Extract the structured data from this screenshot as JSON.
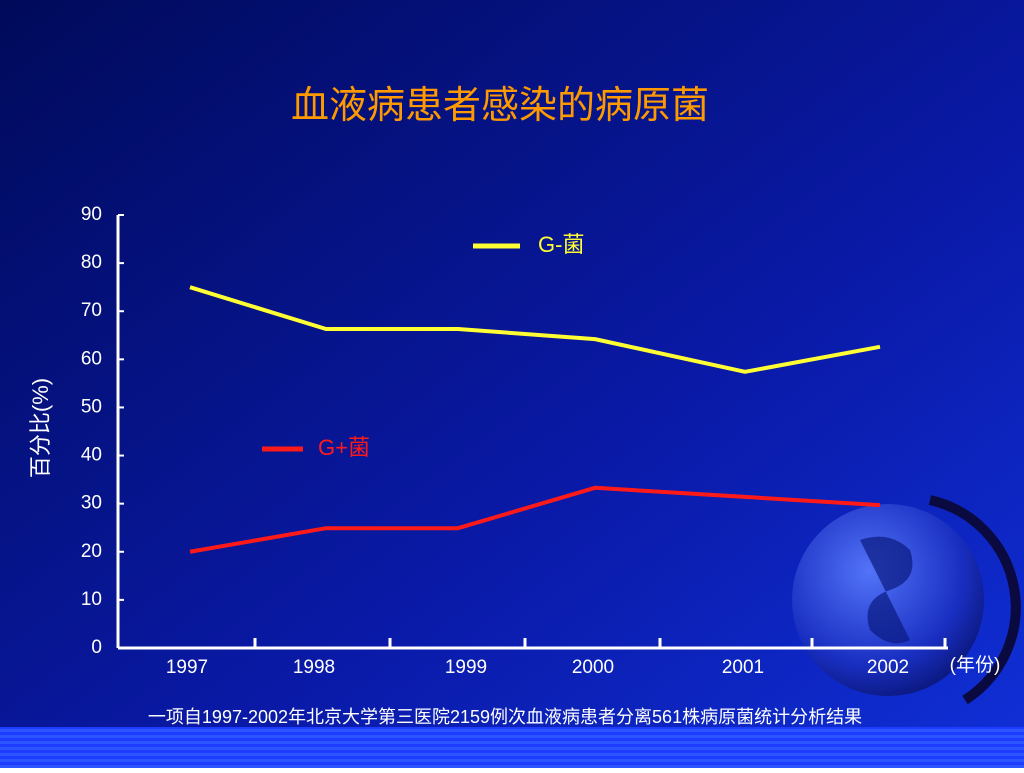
{
  "chart_data": {
    "type": "line",
    "title": "血液病患者感染的病原菌",
    "y_label": "百分比(%)",
    "x_label": "(年份)",
    "note": "一项自1997-2002年北京大学第三医院2159例次血液病患者分离561株病原菌统计分析结果",
    "categories": [
      "1997",
      "1998",
      "1999",
      "2000",
      "2001",
      "2002"
    ],
    "series": [
      {
        "name": "G-菌",
        "color": "#ffff33",
        "values": [
          75,
          66.3,
          66.3,
          64.2,
          57.4,
          62.6
        ]
      },
      {
        "name": "G+菌",
        "color": "#ff1a1a",
        "values": [
          20,
          24.9,
          24.9,
          33.3,
          31.4,
          29.7
        ]
      }
    ],
    "ylim": [
      0,
      90
    ],
    "yticks": [
      0,
      10,
      20,
      30,
      40,
      50,
      60,
      70,
      80,
      90
    ]
  }
}
